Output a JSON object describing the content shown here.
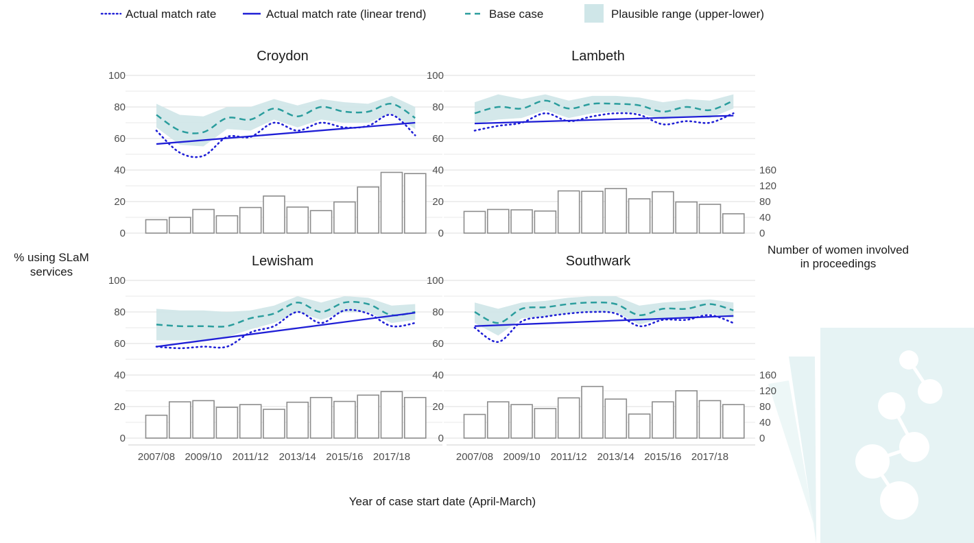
{
  "legend": {
    "actual": "Actual match rate",
    "trend": "Actual match rate (linear trend)",
    "base": "Base case",
    "range": "Plausible range (upper-lower)"
  },
  "axes": {
    "y_left_title": "% using SLaM services",
    "y_right_title": "Number of women involved in proceedings",
    "x_title": "Year of case start date (April-March)"
  },
  "colors": {
    "actual": "#1f1fd6",
    "trend": "#1f1fd6",
    "base": "#2a9d9d",
    "range": "#cfe6e8",
    "bar_stroke": "#8c8c8c",
    "grid": "#e3e3e3",
    "watermark": "#e6f3f4"
  },
  "chart_data": {
    "type": "line",
    "x": [
      "2007/08",
      "2008/09",
      "2009/10",
      "2010/11",
      "2011/12",
      "2012/13",
      "2013/14",
      "2014/15",
      "2015/16",
      "2016/17",
      "2017/18",
      "2018/19"
    ],
    "x_tick_labels": [
      "2007/08",
      "2009/10",
      "2011/12",
      "2013/14",
      "2015/16",
      "2017/18"
    ],
    "y_left": {
      "ticks": [
        0,
        20,
        40,
        60,
        80,
        100
      ],
      "range": [
        0,
        100
      ]
    },
    "y_right": {
      "ticks": [
        0,
        40,
        80,
        120,
        160
      ],
      "range": [
        0,
        160
      ]
    },
    "panels": [
      {
        "name": "Croydon",
        "actual": [
          65,
          51,
          49,
          61,
          61,
          70,
          65,
          70,
          67,
          68,
          75,
          62
        ],
        "trend": [
          56.5,
          70
        ],
        "base": [
          75,
          65,
          64,
          73,
          72,
          79,
          74,
          80,
          77,
          77,
          82,
          73
        ],
        "range_upper": [
          82,
          75,
          74,
          80,
          80,
          85,
          81,
          85,
          83,
          82,
          87,
          80
        ],
        "range_lower": [
          67,
          56,
          55,
          66,
          65,
          72,
          67,
          72,
          70,
          70,
          76,
          66
        ],
        "women": [
          34,
          40,
          60,
          44,
          65,
          94,
          66,
          57,
          79,
          117,
          154,
          151
        ]
      },
      {
        "name": "Lambeth",
        "actual": [
          65,
          68,
          70,
          76,
          71,
          74,
          76,
          75,
          69,
          71,
          70,
          76
        ],
        "trend": [
          69.5,
          74.5
        ],
        "base": [
          76,
          80,
          79,
          84,
          79,
          82,
          82,
          81,
          77,
          80,
          78,
          84
        ],
        "range_upper": [
          83,
          88,
          85,
          88,
          84,
          87,
          87,
          86,
          83,
          85,
          84,
          88
        ],
        "range_lower": [
          69,
          72,
          73,
          78,
          73,
          76,
          77,
          76,
          72,
          74,
          73,
          79
        ],
        "women": [
          55,
          60,
          59,
          56,
          107,
          106,
          113,
          87,
          105,
          79,
          73,
          49
        ]
      },
      {
        "name": "Lewisham",
        "actual": [
          58,
          57,
          58,
          58,
          67,
          71,
          80,
          73,
          81,
          79,
          71,
          73
        ],
        "trend": [
          58,
          79.5
        ],
        "base": [
          72,
          71,
          71,
          71,
          76,
          79,
          86,
          80,
          86,
          85,
          78,
          80
        ],
        "range_upper": [
          82,
          81,
          81,
          80,
          81,
          84,
          90,
          86,
          90,
          89,
          84,
          85
        ],
        "range_lower": [
          62,
          62,
          62,
          64,
          69,
          73,
          80,
          75,
          80,
          80,
          73,
          75
        ],
        "women": [
          58,
          92,
          95,
          78,
          85,
          73,
          91,
          103,
          93,
          109,
          118,
          103
        ]
      },
      {
        "name": "Southwark",
        "actual": [
          70,
          61,
          74,
          77,
          79,
          80,
          79,
          71,
          75,
          75,
          78,
          73
        ],
        "trend": [
          71,
          77.5
        ],
        "base": [
          80,
          73,
          82,
          83,
          85,
          86,
          85,
          78,
          82,
          82,
          85,
          81
        ],
        "range_upper": [
          86,
          82,
          86,
          87,
          89,
          90,
          90,
          84,
          86,
          87,
          88,
          86
        ],
        "range_lower": [
          73,
          65,
          76,
          77,
          79,
          80,
          80,
          72,
          76,
          76,
          79,
          76
        ],
        "women": [
          60,
          92,
          85,
          75,
          102,
          131,
          99,
          61,
          92,
          120,
          95,
          85
        ]
      }
    ]
  }
}
